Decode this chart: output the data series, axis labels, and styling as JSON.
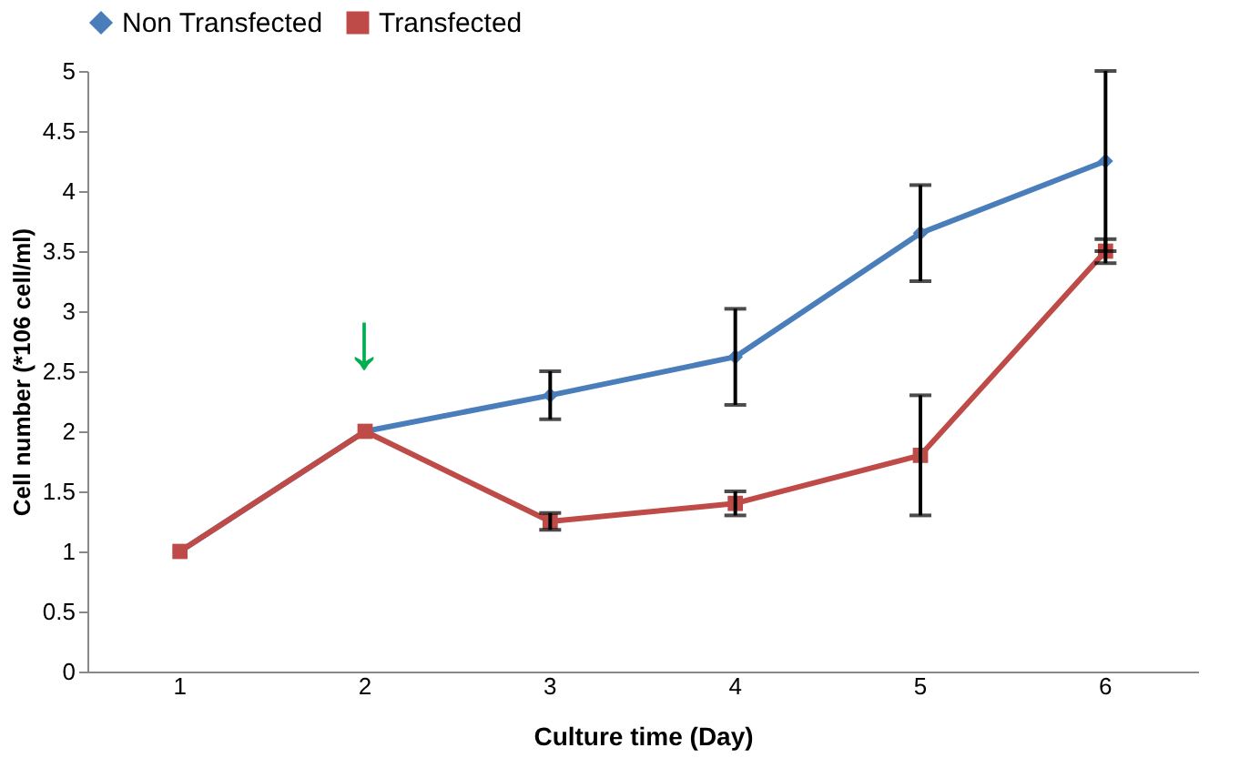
{
  "chart_data": {
    "type": "line",
    "xlabel": "Culture time (Day)",
    "ylabel": "Cell number (*106 cell/ml)",
    "categories": [
      "1",
      "2",
      "3",
      "4",
      "5",
      "6"
    ],
    "series": [
      {
        "name": "Non Transfected",
        "color": "#4a7ebb",
        "marker": "diamond",
        "values": [
          1,
          2,
          2.3,
          2.62,
          3.65,
          4.25
        ],
        "errors": [
          null,
          null,
          0.2,
          0.4,
          0.4,
          0.75
        ]
      },
      {
        "name": "Transfected",
        "color": "#be4b48",
        "marker": "square",
        "values": [
          1,
          2,
          1.25,
          1.4,
          1.8,
          3.5
        ],
        "errors": [
          null,
          null,
          0.07,
          0.1,
          0.5,
          0.1
        ]
      }
    ],
    "ylim": [
      0,
      5
    ],
    "yticks": [
      0,
      0.5,
      1,
      1.5,
      2,
      2.5,
      3,
      3.5,
      4,
      4.5,
      5
    ],
    "grid": false,
    "legend": "top",
    "line_style": "solid",
    "annotations": [
      "↓"
    ]
  }
}
